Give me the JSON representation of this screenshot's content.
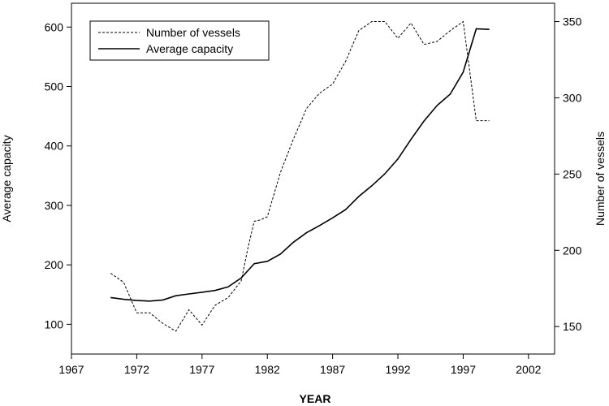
{
  "chart_data": {
    "type": "line",
    "xlabel": "YEAR",
    "ylabel_left": "Average capacity",
    "ylabel_right": "Number of vessels",
    "x_range": [
      1967,
      2004
    ],
    "x_ticks": [
      1967,
      1972,
      1977,
      1982,
      1987,
      1992,
      1997,
      2002
    ],
    "y_left_range": [
      50,
      640
    ],
    "y_left_ticks": [
      100,
      200,
      300,
      400,
      500,
      600
    ],
    "y_right_range": [
      132,
      362
    ],
    "y_right_ticks": [
      150,
      200,
      250,
      300,
      350
    ],
    "grid": false,
    "legend_placement": "top-left",
    "series": [
      {
        "name": "Number of vessels",
        "axis": "right",
        "style": "dashed",
        "x": [
          1970,
          1971,
          1972,
          1973,
          1974,
          1975,
          1976,
          1977,
          1978,
          1979,
          1980,
          1980.5,
          1981,
          1981.5,
          1982,
          1983,
          1984,
          1985,
          1986,
          1987,
          1988,
          1989,
          1990,
          1991,
          1992,
          1993,
          1994,
          1995,
          1996,
          1997,
          1998,
          1999
        ],
        "values": [
          185,
          179,
          159,
          159,
          152,
          147,
          161,
          151,
          164,
          169,
          180,
          201,
          219,
          220,
          222,
          251,
          273,
          293,
          303,
          309,
          324,
          344,
          350,
          350,
          339,
          349,
          335,
          337,
          344,
          350,
          285,
          285
        ]
      },
      {
        "name": "Average capacity",
        "axis": "left",
        "style": "solid",
        "x": [
          1970,
          1971,
          1972,
          1973,
          1974,
          1975,
          1976,
          1977,
          1978,
          1979,
          1980,
          1981,
          1982,
          1983,
          1984,
          1985,
          1986,
          1987,
          1988,
          1989,
          1990,
          1991,
          1992,
          1993,
          1994,
          1995,
          1996,
          1997,
          1998,
          1999
        ],
        "values": [
          145,
          142,
          140,
          139,
          141,
          148,
          151,
          154,
          157,
          163,
          178,
          202,
          206,
          218,
          238,
          254,
          266,
          279,
          293,
          315,
          333,
          353,
          378,
          411,
          442,
          468,
          487,
          524,
          597,
          596
        ]
      }
    ]
  }
}
